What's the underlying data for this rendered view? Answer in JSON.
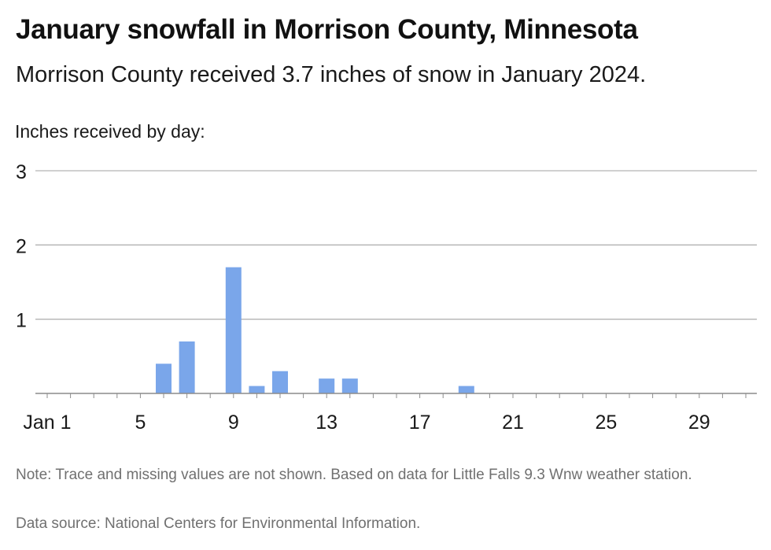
{
  "title": "January snowfall in Morrison County, Minnesota",
  "subtitle": "Morrison County received 3.7 inches of snow in January 2024.",
  "note": "Note: Trace and missing values are not shown. Based on data for Little Falls 9.3 Wnw weather station.",
  "source": "Data source: National Centers for Environmental Information.",
  "colors": {
    "bar": "#7aa6ea",
    "grid": "#b3b3b3",
    "axis": "#8c8c8c"
  },
  "chart_data": {
    "type": "bar",
    "title": "January snowfall in Morrison County, Minnesota",
    "subtitle": "Morrison County received 3.7 inches of snow in January 2024.",
    "ylabel": "Inches received by day:",
    "xlabel": "",
    "ylim": [
      0,
      3
    ],
    "yticks": [
      1,
      2,
      3
    ],
    "xticks": [
      {
        "day": 1,
        "label": "Jan 1"
      },
      {
        "day": 5,
        "label": "5"
      },
      {
        "day": 9,
        "label": "9"
      },
      {
        "day": 13,
        "label": "13"
      },
      {
        "day": 17,
        "label": "17"
      },
      {
        "day": 21,
        "label": "21"
      },
      {
        "day": 25,
        "label": "25"
      },
      {
        "day": 29,
        "label": "29"
      }
    ],
    "days": [
      1,
      2,
      3,
      4,
      5,
      6,
      7,
      8,
      9,
      10,
      11,
      12,
      13,
      14,
      15,
      16,
      17,
      18,
      19,
      20,
      21,
      22,
      23,
      24,
      25,
      26,
      27,
      28,
      29,
      30,
      31
    ],
    "values": [
      0,
      0,
      0,
      0,
      0,
      0.4,
      0.7,
      0,
      1.7,
      0.1,
      0.3,
      0,
      0.2,
      0.2,
      0,
      0,
      0,
      0,
      0.1,
      0,
      0,
      0,
      0,
      0,
      0,
      0,
      0,
      0,
      0,
      0,
      0
    ],
    "grid": true
  }
}
